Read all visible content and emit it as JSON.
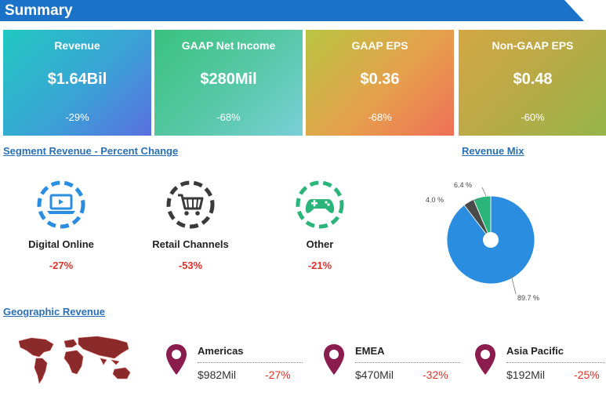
{
  "header": {
    "title": "Summary",
    "color": "#1a73c9"
  },
  "kpis": [
    {
      "label": "Revenue",
      "value": "$1.64Bil",
      "change": "-29%"
    },
    {
      "label": "GAAP Net Income",
      "value": "$280Mil",
      "change": "-68%"
    },
    {
      "label": "GAAP EPS",
      "value": "$0.36",
      "change": "-68%"
    },
    {
      "label": "Non-GAAP EPS",
      "value": "$0.48",
      "change": "-60%"
    }
  ],
  "segments": {
    "title": "Segment Revenue - Percent Change",
    "items": [
      {
        "label": "Digital Online",
        "change": "-27%",
        "icon": "laptop-icon",
        "color": "#2a8de0"
      },
      {
        "label": "Retail Channels",
        "change": "-53%",
        "icon": "shopping-cart-icon",
        "color": "#3a3a3a"
      },
      {
        "label": "Other",
        "change": "-21%",
        "icon": "gamepad-icon",
        "color": "#2bb57a"
      }
    ]
  },
  "chart_data": {
    "type": "pie",
    "title": "Revenue Mix",
    "slices": [
      {
        "value": 89.7,
        "label": "89.7 %",
        "color": "#2a8de0"
      },
      {
        "value": 4.0,
        "label": "4.0 %",
        "color": "#4a4a4a"
      },
      {
        "value": 6.4,
        "label": "6.4 %",
        "color": "#2bb57a"
      }
    ]
  },
  "geographic": {
    "title": "Geographic Revenue",
    "regions": [
      {
        "name": "Americas",
        "value": "$982Mil",
        "change": "-27%"
      },
      {
        "name": "EMEA",
        "value": "$470Mil",
        "change": "-32%"
      },
      {
        "name": "Asia Pacific",
        "value": "$192Mil",
        "change": "-25%"
      }
    ]
  }
}
